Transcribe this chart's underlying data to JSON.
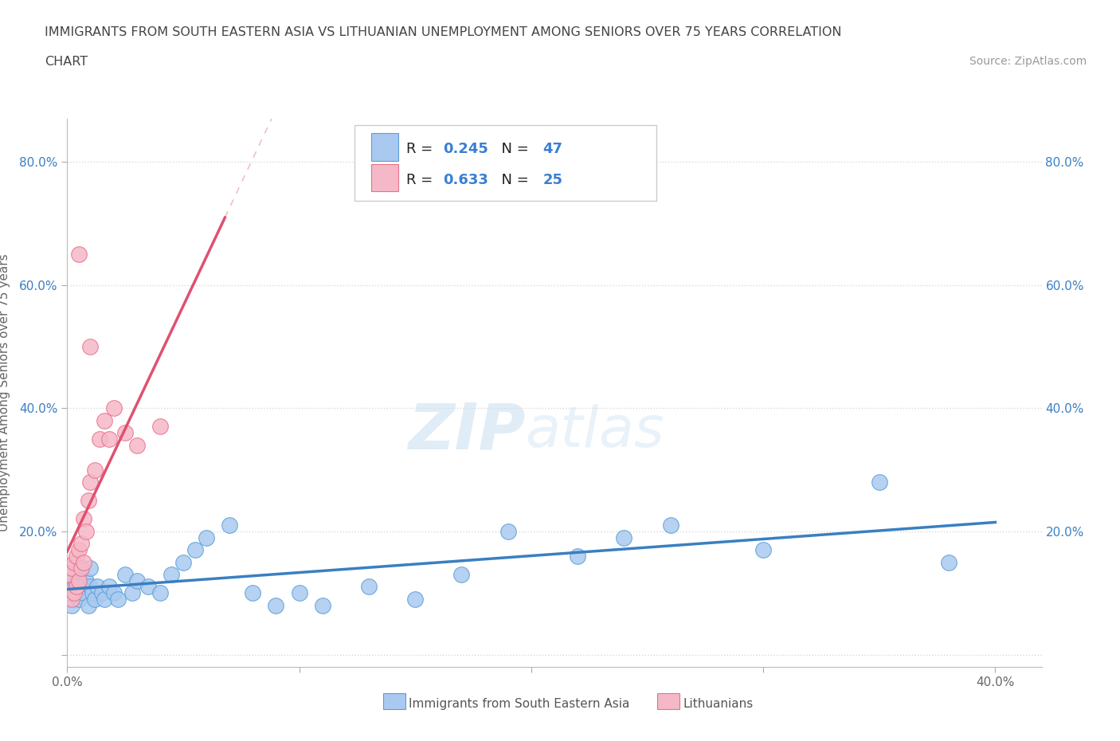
{
  "title_line1": "IMMIGRANTS FROM SOUTH EASTERN ASIA VS LITHUANIAN UNEMPLOYMENT AMONG SENIORS OVER 75 YEARS CORRELATION",
  "title_line2": "CHART",
  "source_text": "Source: ZipAtlas.com",
  "xlim": [
    0.0,
    0.42
  ],
  "ylim": [
    -0.02,
    0.87
  ],
  "watermark_zip": "ZIP",
  "watermark_atlas": "atlas",
  "legend_labels": [
    "Immigrants from South Eastern Asia",
    "Lithuanians"
  ],
  "r_blue": "0.245",
  "n_blue": "47",
  "r_pink": "0.633",
  "n_pink": "25",
  "blue_scatter_color": "#aac9f0",
  "pink_scatter_color": "#f5b8c8",
  "blue_edge_color": "#5a9fd4",
  "pink_edge_color": "#e8708a",
  "blue_line_color": "#3a7fc1",
  "pink_line_color": "#e05070",
  "dash_line_color": "#e8b0be",
  "grid_color": "#d8d8d8",
  "blue_x": [
    0.001,
    0.002,
    0.002,
    0.003,
    0.003,
    0.004,
    0.004,
    0.005,
    0.005,
    0.006,
    0.007,
    0.008,
    0.009,
    0.01,
    0.01,
    0.011,
    0.012,
    0.013,
    0.015,
    0.016,
    0.018,
    0.02,
    0.022,
    0.025,
    0.028,
    0.03,
    0.035,
    0.04,
    0.045,
    0.05,
    0.055,
    0.06,
    0.07,
    0.08,
    0.09,
    0.1,
    0.11,
    0.13,
    0.15,
    0.17,
    0.19,
    0.22,
    0.24,
    0.26,
    0.3,
    0.35,
    0.38
  ],
  "blue_y": [
    0.1,
    0.08,
    0.13,
    0.11,
    0.14,
    0.1,
    0.12,
    0.09,
    0.13,
    0.11,
    0.1,
    0.12,
    0.08,
    0.11,
    0.14,
    0.1,
    0.09,
    0.11,
    0.1,
    0.09,
    0.11,
    0.1,
    0.09,
    0.13,
    0.1,
    0.12,
    0.11,
    0.1,
    0.13,
    0.15,
    0.17,
    0.19,
    0.21,
    0.1,
    0.08,
    0.1,
    0.08,
    0.11,
    0.09,
    0.13,
    0.2,
    0.16,
    0.19,
    0.21,
    0.17,
    0.28,
    0.15
  ],
  "pink_x": [
    0.001,
    0.001,
    0.002,
    0.002,
    0.003,
    0.003,
    0.004,
    0.004,
    0.005,
    0.005,
    0.006,
    0.006,
    0.007,
    0.007,
    0.008,
    0.009,
    0.01,
    0.012,
    0.014,
    0.016,
    0.018,
    0.02,
    0.025,
    0.03,
    0.04
  ],
  "pink_y": [
    0.1,
    0.13,
    0.09,
    0.14,
    0.1,
    0.15,
    0.11,
    0.16,
    0.12,
    0.17,
    0.14,
    0.18,
    0.15,
    0.22,
    0.2,
    0.25,
    0.28,
    0.3,
    0.35,
    0.38,
    0.35,
    0.4,
    0.36,
    0.34,
    0.37
  ]
}
